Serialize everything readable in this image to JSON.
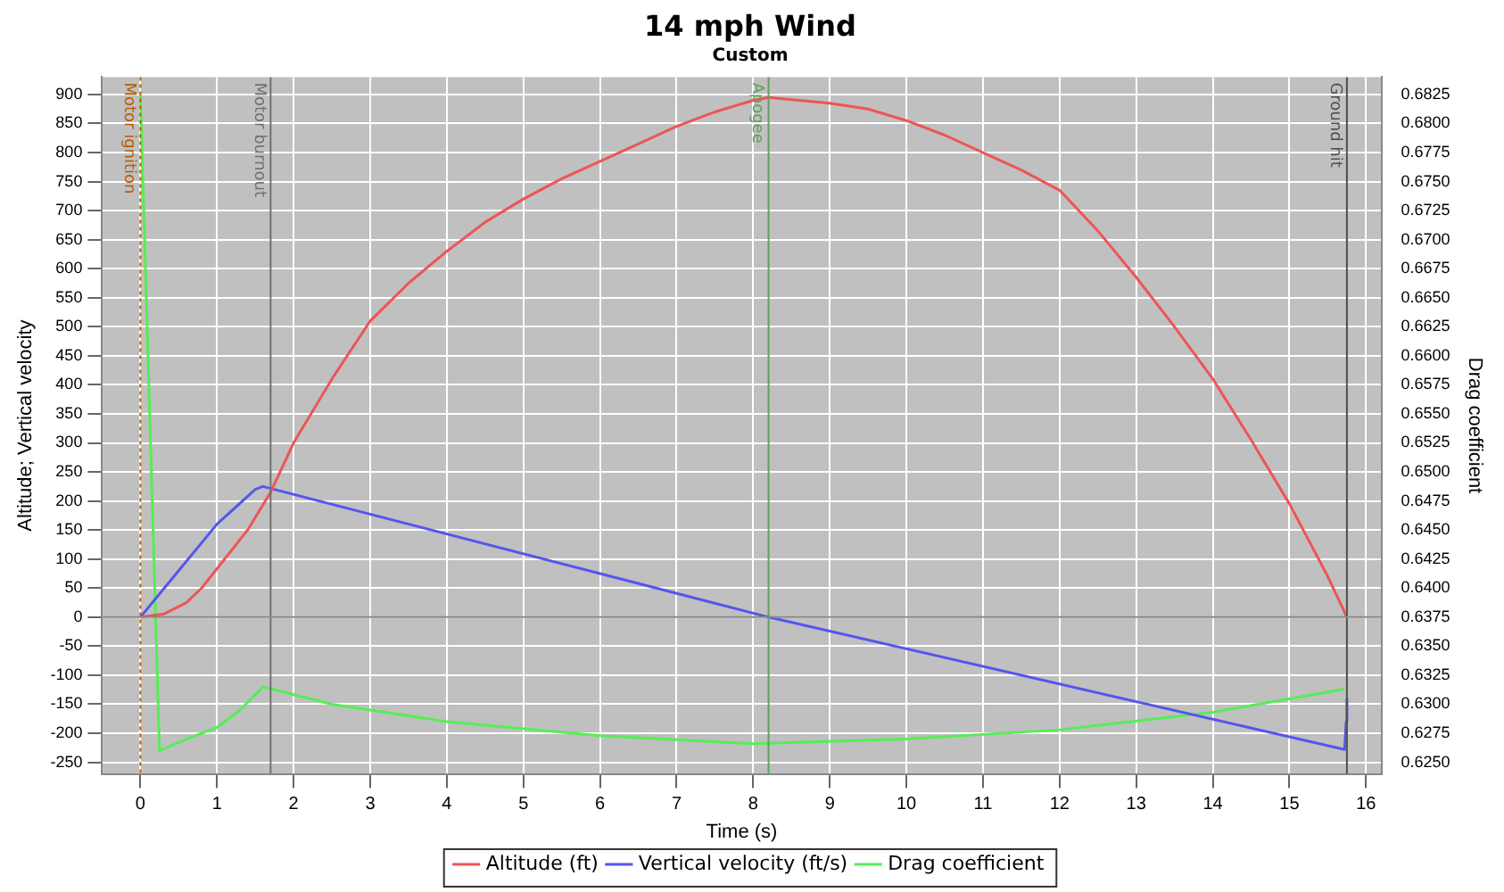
{
  "chart_data": {
    "type": "line",
    "title": "14 mph Wind",
    "subtitle": "Custom",
    "xlabel": "Time (s)",
    "ylabel": "Altitude; Vertical velocity",
    "y2label": "Drag coefficient",
    "xlim": [
      -0.5,
      16.2
    ],
    "xticks": [
      0,
      1,
      2,
      3,
      4,
      5,
      6,
      7,
      8,
      9,
      10,
      11,
      12,
      13,
      14,
      15,
      16
    ],
    "ylim": [
      -270,
      930
    ],
    "yticks": [
      -250,
      -200,
      -150,
      -100,
      -50,
      0,
      50,
      100,
      150,
      200,
      250,
      300,
      350,
      400,
      450,
      500,
      550,
      600,
      650,
      700,
      750,
      800,
      850,
      900
    ],
    "y2lim": [
      0.624,
      0.684
    ],
    "y2ticks": [
      {
        "value": 0.625,
        "label": "0.6250"
      },
      {
        "value": 0.6275,
        "label": "0.6275"
      },
      {
        "value": 0.63,
        "label": "0.6300"
      },
      {
        "value": 0.6325,
        "label": "0.6325"
      },
      {
        "value": 0.635,
        "label": "0.6350"
      },
      {
        "value": 0.6375,
        "label": "0.6375"
      },
      {
        "value": 0.64,
        "label": "0.6400"
      },
      {
        "value": 0.6425,
        "label": "0.6425"
      },
      {
        "value": 0.645,
        "label": "0.6450"
      },
      {
        "value": 0.6475,
        "label": "0.6475"
      },
      {
        "value": 0.65,
        "label": "0.6500"
      },
      {
        "value": 0.6525,
        "label": "0.6525"
      },
      {
        "value": 0.655,
        "label": "0.6550"
      },
      {
        "value": 0.6575,
        "label": "0.6575"
      },
      {
        "value": 0.66,
        "label": "0.6600"
      },
      {
        "value": 0.6625,
        "label": "0.6625"
      },
      {
        "value": 0.665,
        "label": "0.6650"
      },
      {
        "value": 0.6675,
        "label": "0.6675"
      },
      {
        "value": 0.67,
        "label": "0.6700"
      },
      {
        "value": 0.6725,
        "label": "0.6725"
      },
      {
        "value": 0.675,
        "label": "0.6750"
      },
      {
        "value": 0.6775,
        "label": "0.6775"
      },
      {
        "value": 0.68,
        "label": "0.6800"
      },
      {
        "value": 0.6825,
        "label": "0.6825"
      }
    ],
    "grid": true,
    "legend": "bottom",
    "marker": "none",
    "line_style": "solid",
    "series": [
      {
        "name": "Altitude (ft)",
        "color": "#ee5555",
        "x": [
          0,
          0.3,
          0.6,
          0.8,
          1.1,
          1.4,
          1.7,
          2,
          2.5,
          3,
          3.5,
          4,
          4.5,
          5,
          5.5,
          6,
          6.5,
          7,
          7.5,
          8,
          8.2,
          9,
          9.5,
          10,
          10.5,
          11,
          11.5,
          12,
          12.5,
          13,
          13.5,
          14,
          14.5,
          15,
          15.5,
          15.75
        ],
        "values": [
          0,
          5,
          25,
          50,
          100,
          150,
          215,
          300,
          410,
          510,
          575,
          630,
          680,
          720,
          755,
          785,
          815,
          845,
          870,
          890,
          895,
          885,
          875,
          855,
          830,
          800,
          770,
          735,
          665,
          585,
          500,
          410,
          305,
          195,
          70,
          0
        ]
      },
      {
        "name": "Vertical velocity (ft/s)",
        "color": "#5555ee",
        "x": [
          0,
          0.5,
          1,
          1.5,
          1.6,
          8.2,
          15.72,
          15.74,
          15.75
        ],
        "values": [
          0,
          80,
          160,
          220,
          225,
          0,
          -228,
          -180,
          -140
        ]
      },
      {
        "name": "Drag coefficient",
        "color": "#55ee55",
        "axis": "y2",
        "x": [
          0,
          0.25,
          0.6,
          1,
          1.3,
          1.6,
          2.5,
          4,
          6,
          8,
          10,
          12,
          14,
          15.72
        ],
        "values": [
          0.6825,
          0.626,
          0.627,
          0.628,
          0.6295,
          0.6315,
          0.63,
          0.6285,
          0.6273,
          0.6266,
          0.627,
          0.6278,
          0.6293,
          0.6313
        ]
      }
    ],
    "ref_lines": [
      {
        "axis": "x",
        "value": 0,
        "label": "Motor ignition",
        "color": "#b85c00",
        "line_style": "dotted"
      },
      {
        "axis": "x",
        "value": 1.7,
        "label": "Motor burnout",
        "color": "#707070"
      },
      {
        "axis": "x",
        "value": 8.2,
        "label": "Apogee",
        "color": "#60a060"
      },
      {
        "axis": "x",
        "value": 15.75,
        "label": "Ground hit",
        "color": "#505050"
      },
      {
        "axis": "y",
        "value": 0,
        "color": "#888888"
      }
    ]
  }
}
